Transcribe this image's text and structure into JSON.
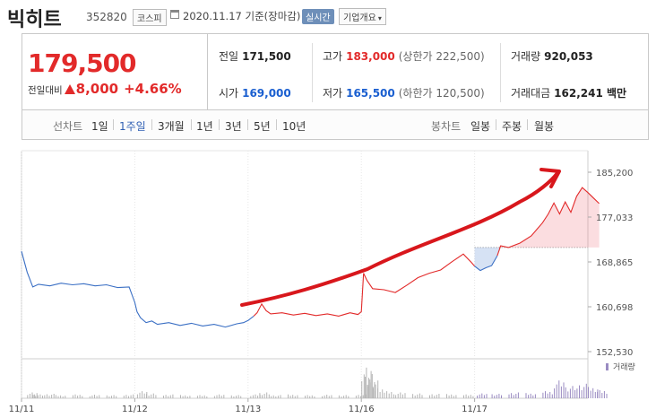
{
  "header": {
    "name": "빅히트",
    "code": "352820",
    "market": "코스피",
    "basis": "2020.11.17 기준(장마감)",
    "realtime": "실시간",
    "company_overview": "기업개요"
  },
  "price": {
    "current": "179,500",
    "change_label": "전일대비",
    "change": "8,000",
    "change_pct": "+4.66%"
  },
  "metrics": {
    "prev_close": {
      "label": "전일",
      "value": "171,500"
    },
    "high": {
      "label": "고가",
      "value": "183,000",
      "sub": "(상한가 222,500)"
    },
    "volume": {
      "label": "거래량",
      "value": "920,053"
    },
    "open": {
      "label": "시가",
      "value": "169,000"
    },
    "low": {
      "label": "저가",
      "value": "165,500",
      "sub": "(하한가 120,500)"
    },
    "amount": {
      "label": "거래대금",
      "value": "162,241 백만"
    }
  },
  "periods": {
    "line_label": "선차트",
    "line_items": [
      "1일",
      "1주일",
      "3개월",
      "1년",
      "3년",
      "5년",
      "10년"
    ],
    "active": "1주일",
    "candle_label": "봉차트",
    "candle_items": [
      "일봉",
      "주봉",
      "월봉"
    ]
  },
  "colors": {
    "up": "#e22a2a",
    "down": "#3a6fc4",
    "volume": "#9a8bc2"
  },
  "chart_data": {
    "type": "line",
    "x_ticks": [
      "11/11",
      "11/12",
      "11/13",
      "11/16",
      "11/17"
    ],
    "y_ticks": [
      "185,200",
      "177,033",
      "168,865",
      "160,698",
      "152,530"
    ],
    "ylim": [
      152530,
      185200
    ],
    "reference": 171500,
    "volume_legend": "거래량",
    "series": [
      {
        "values": [
          [
            0.0,
            170800
          ],
          [
            0.05,
            167000
          ],
          [
            0.1,
            164300
          ],
          [
            0.15,
            164800
          ],
          [
            0.25,
            164500
          ],
          [
            0.35,
            165000
          ],
          [
            0.45,
            164700
          ],
          [
            0.55,
            164900
          ],
          [
            0.65,
            164500
          ],
          [
            0.75,
            164700
          ],
          [
            0.85,
            164200
          ],
          [
            0.95,
            164300
          ],
          [
            1.0,
            161500
          ],
          [
            1.02,
            159800
          ],
          [
            1.05,
            158700
          ],
          [
            1.1,
            157800
          ],
          [
            1.15,
            158100
          ],
          [
            1.2,
            157500
          ],
          [
            1.3,
            157800
          ],
          [
            1.4,
            157300
          ],
          [
            1.5,
            157700
          ],
          [
            1.6,
            157200
          ],
          [
            1.7,
            157500
          ],
          [
            1.8,
            157000
          ],
          [
            1.9,
            157600
          ],
          [
            1.96,
            157800
          ],
          [
            2.0,
            158200
          ],
          [
            2.05,
            159000
          ],
          [
            2.08,
            159600
          ],
          [
            2.12,
            161200
          ],
          [
            2.16,
            160000
          ],
          [
            2.2,
            159400
          ],
          [
            2.3,
            159600
          ],
          [
            2.4,
            159200
          ],
          [
            2.5,
            159500
          ],
          [
            2.6,
            159100
          ],
          [
            2.7,
            159400
          ],
          [
            2.8,
            159000
          ],
          [
            2.9,
            159600
          ],
          [
            2.97,
            159300
          ],
          [
            3.0,
            159800
          ],
          [
            3.02,
            166800
          ],
          [
            3.05,
            165500
          ],
          [
            3.1,
            164000
          ],
          [
            3.2,
            163800
          ],
          [
            3.3,
            163300
          ],
          [
            3.4,
            164600
          ],
          [
            3.5,
            166000
          ],
          [
            3.6,
            166800
          ],
          [
            3.7,
            167400
          ],
          [
            3.8,
            168900
          ],
          [
            3.9,
            170300
          ],
          [
            3.97,
            168800
          ],
          [
            4.0,
            168100
          ],
          [
            4.05,
            167300
          ],
          [
            4.1,
            167800
          ],
          [
            4.15,
            168200
          ],
          [
            4.2,
            170000
          ],
          [
            4.23,
            171800
          ],
          [
            4.3,
            171500
          ],
          [
            4.4,
            172300
          ],
          [
            4.5,
            173600
          ],
          [
            4.6,
            176000
          ],
          [
            4.65,
            177600
          ],
          [
            4.7,
            179600
          ],
          [
            4.75,
            177600
          ],
          [
            4.8,
            179800
          ],
          [
            4.85,
            177900
          ],
          [
            4.9,
            180800
          ],
          [
            4.95,
            182400
          ],
          [
            5.0,
            181500
          ],
          [
            5.05,
            180500
          ],
          [
            5.1,
            179500
          ]
        ]
      }
    ],
    "volume": [
      {
        "x": [
          0.05,
          0.1,
          0.2,
          0.3,
          0.45,
          0.6,
          0.75,
          0.9
        ],
        "h": [
          0.18,
          0.12,
          0.14,
          0.1,
          0.12,
          0.11,
          0.1,
          0.12
        ]
      },
      {
        "x": [
          1.02,
          1.1,
          1.25,
          1.4,
          1.55,
          1.7,
          1.85
        ],
        "h": [
          0.22,
          0.15,
          0.12,
          0.1,
          0.1,
          0.12,
          0.1
        ]
      },
      {
        "x": [
          2.02,
          2.1,
          2.2,
          2.35,
          2.5,
          2.65,
          2.8,
          2.95
        ],
        "h": [
          0.12,
          0.18,
          0.1,
          0.12,
          0.1,
          0.11,
          0.1,
          0.12
        ]
      },
      {
        "x": [
          3.0,
          3.03,
          3.06,
          3.1,
          3.2,
          3.3,
          3.45,
          3.6,
          3.75,
          3.9
        ],
        "h": [
          0.95,
          0.75,
          0.55,
          0.35,
          0.22,
          0.18,
          0.15,
          0.14,
          0.13,
          0.12
        ]
      },
      {
        "x": [
          4.02,
          4.15,
          4.3,
          4.45,
          4.6,
          4.7,
          4.8,
          4.9,
          5.0,
          5.08
        ],
        "h": [
          0.15,
          0.14,
          0.18,
          0.16,
          0.22,
          0.55,
          0.38,
          0.45,
          0.35,
          0.25
        ]
      }
    ]
  }
}
